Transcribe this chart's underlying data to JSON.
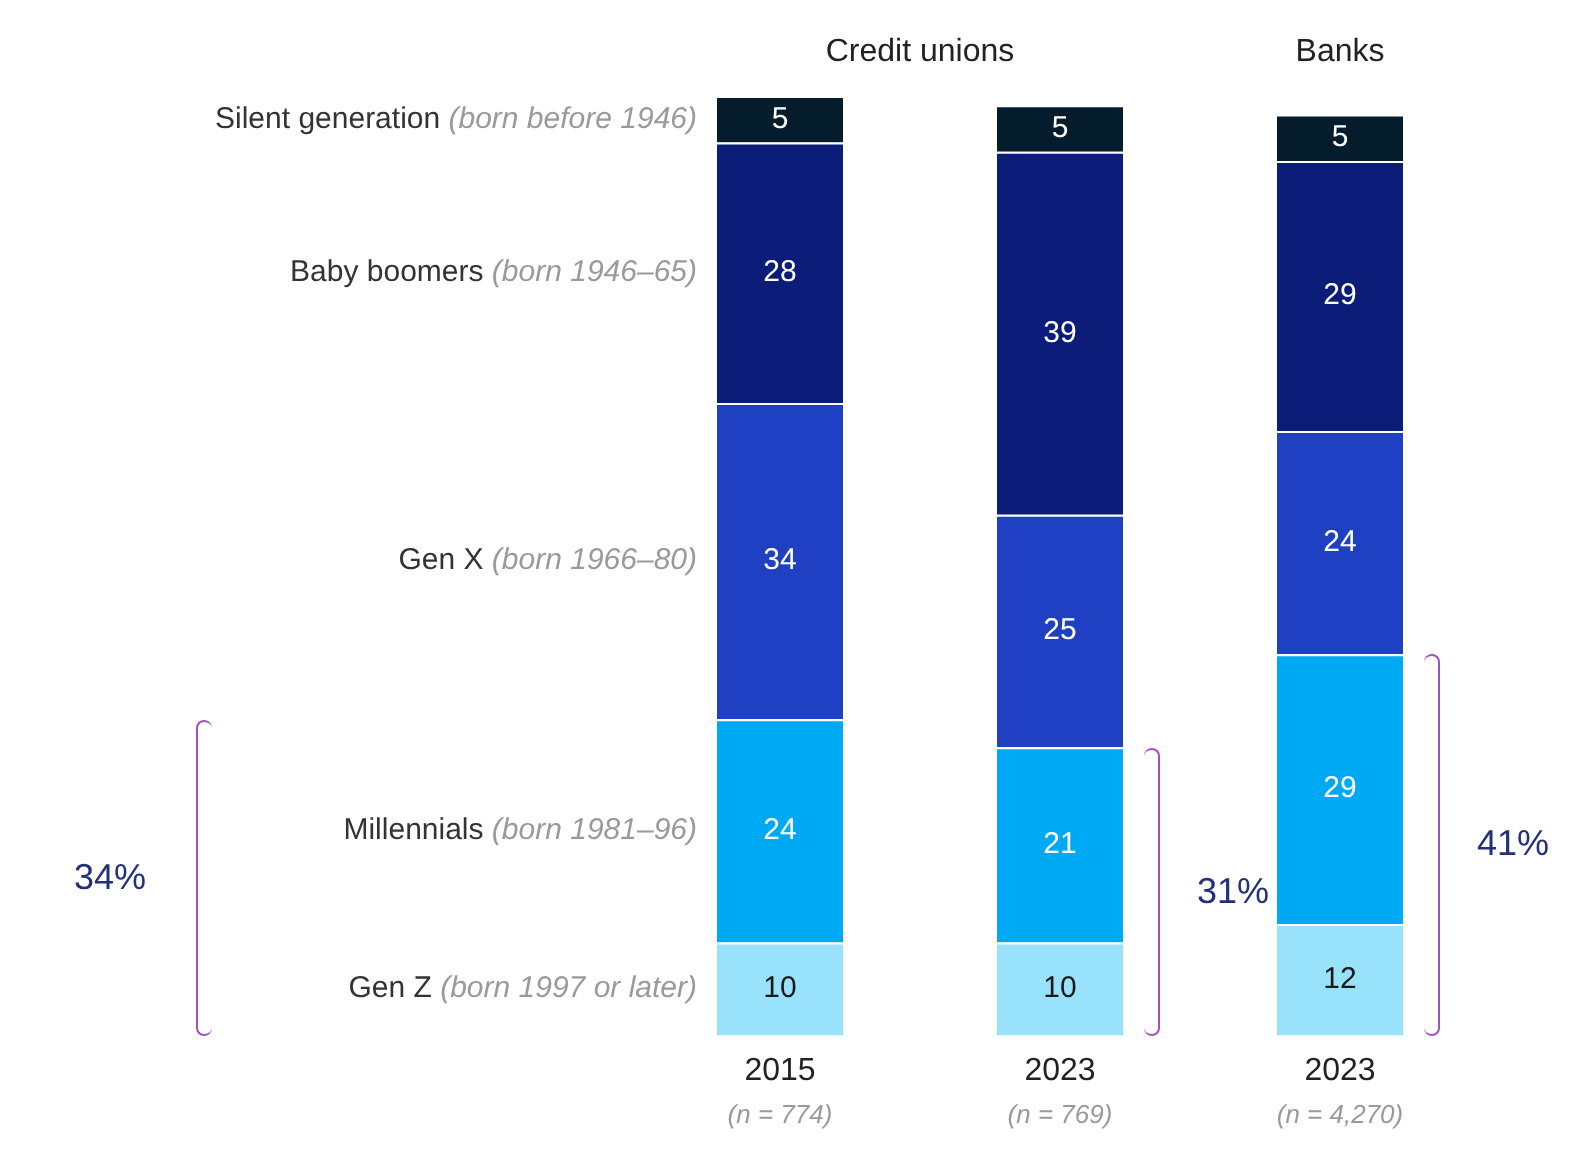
{
  "chart_data": {
    "type": "bar",
    "stacked": true,
    "data_labels": true,
    "grid": false,
    "categories": [
      "2015",
      "2023",
      "2023"
    ],
    "series": [
      {
        "name": "Gen Z (born 1997 or later)",
        "color": "#99e2fb",
        "values": [
          10,
          10,
          12
        ]
      },
      {
        "name": "Millennials (born 1981–96)",
        "color": "#00a9f4",
        "values": [
          24,
          21,
          29
        ]
      },
      {
        "name": "Gen X (born 1966–80)",
        "color": "#2040c4",
        "values": [
          34,
          25,
          24
        ]
      },
      {
        "name": "Baby boomers (born 1946–65)",
        "color": "#0b1d78",
        "values": [
          28,
          39,
          29
        ]
      },
      {
        "name": "Silent generation (born before 1946)",
        "color": "#051c2c",
        "values": [
          5,
          5,
          5
        ]
      }
    ],
    "annotations": [
      "Credit unions",
      "Banks",
      "(n = 774)",
      "(n = 769)",
      "(n = 4,270)",
      "34%",
      "31%",
      "41%"
    ]
  }
}
